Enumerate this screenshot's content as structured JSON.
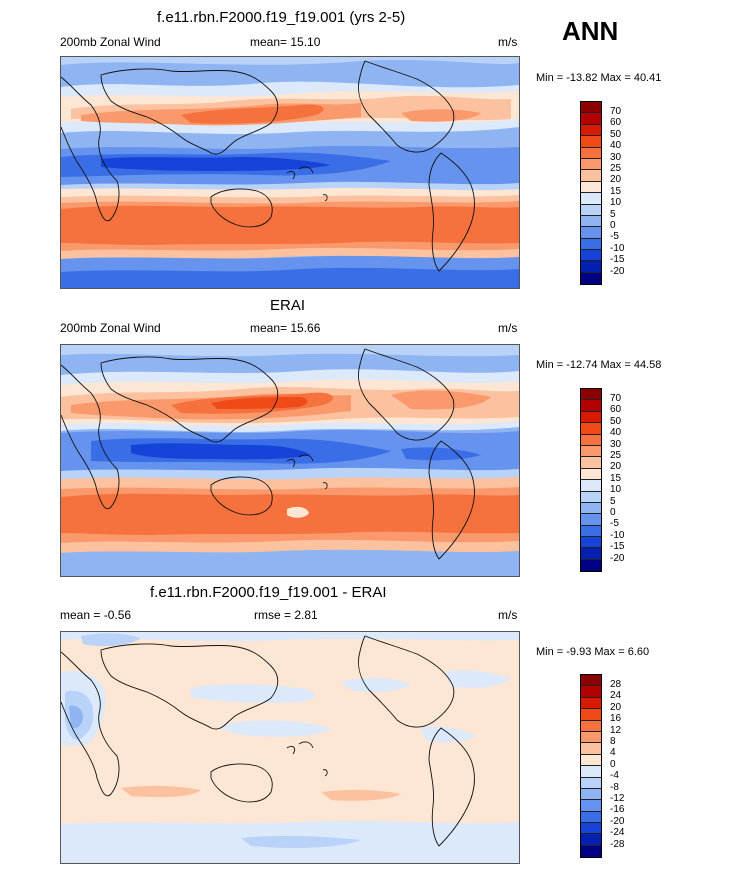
{
  "season": "ANN",
  "panels": [
    {
      "title": "f.e11.rbn.F2000.f19_f19.001 (yrs 2-5)",
      "left_label": "200mb Zonal Wind",
      "center_label": "mean=  15.10",
      "right_label": "m/s",
      "minmax": "Min = -13.82 Max =  40.41",
      "colorbar_labels": [
        "70",
        "60",
        "50",
        "40",
        "30",
        "25",
        "20",
        "15",
        "10",
        "5",
        "0",
        "-5",
        "-10",
        "-15",
        "-20"
      ],
      "colors": [
        "#8b0000",
        "#b30000",
        "#d71a00",
        "#ef4a17",
        "#f5713e",
        "#fa996b",
        "#fcc19e",
        "#fde6d4",
        "#dce9fb",
        "#b9d2f7",
        "#8fb4f2",
        "#6693ee",
        "#3a6ee6",
        "#1744d8",
        "#0020b0",
        "#000080"
      ]
    },
    {
      "title": "ERAI",
      "left_label": "200mb Zonal Wind",
      "center_label": "mean=  15.66",
      "right_label": "m/s",
      "minmax": "Min = -12.74 Max =  44.58",
      "colorbar_labels": [
        "70",
        "60",
        "50",
        "40",
        "30",
        "25",
        "20",
        "15",
        "10",
        "5",
        "0",
        "-5",
        "-10",
        "-15",
        "-20"
      ],
      "colors": [
        "#8b0000",
        "#b30000",
        "#d71a00",
        "#ef4a17",
        "#f5713e",
        "#fa996b",
        "#fcc19e",
        "#fde6d4",
        "#dce9fb",
        "#b9d2f7",
        "#8fb4f2",
        "#6693ee",
        "#3a6ee6",
        "#1744d8",
        "#0020b0",
        "#000080"
      ]
    },
    {
      "title": "f.e11.rbn.F2000.f19_f19.001 - ERAI",
      "left_label": "mean =  -0.56",
      "center_label": "rmse =   2.81",
      "right_label": "m/s",
      "minmax": "Min =  -9.93 Max =   6.60",
      "colorbar_labels": [
        "28",
        "24",
        "20",
        "16",
        "12",
        "8",
        "4",
        "0",
        "-4",
        "-8",
        "-12",
        "-16",
        "-20",
        "-24",
        "-28"
      ],
      "colors": [
        "#8b0000",
        "#b30000",
        "#d71a00",
        "#ef4a17",
        "#f5713e",
        "#fa996b",
        "#fcc19e",
        "#fde6d4",
        "#dce9fb",
        "#b9d2f7",
        "#8fb4f2",
        "#6693ee",
        "#3a6ee6",
        "#1744d8",
        "#0020b0",
        "#000080"
      ]
    }
  ]
}
